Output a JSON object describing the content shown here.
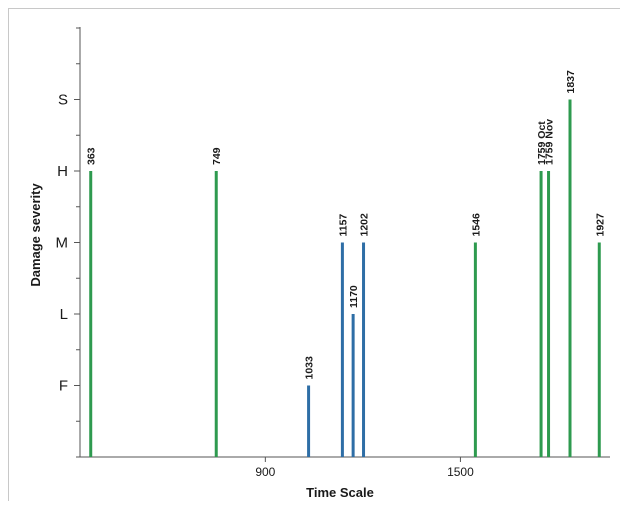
{
  "chart_data": {
    "type": "bar",
    "xlabel": "Time Scale",
    "ylabel": "Damage severity",
    "xlim": [
      330,
      1960
    ],
    "x_ticks": [
      900,
      1500
    ],
    "y_levels": [
      "F",
      "L",
      "M",
      "H",
      "S"
    ],
    "grid": false,
    "colors": {
      "green": "#2e9a4f",
      "blue": "#2e6ea6"
    },
    "bars": [
      {
        "label": "363",
        "x": 363,
        "level": "H",
        "value": 4,
        "color": "green"
      },
      {
        "label": "749",
        "x": 749,
        "level": "H",
        "value": 4,
        "color": "green"
      },
      {
        "label": "1033",
        "x": 1033,
        "level": "F",
        "value": 1,
        "color": "blue"
      },
      {
        "label": "1157",
        "x": 1137,
        "level": "M",
        "value": 3,
        "color": "blue"
      },
      {
        "label": "1170",
        "x": 1170,
        "level": "L",
        "value": 2,
        "color": "blue"
      },
      {
        "label": "1202",
        "x": 1202,
        "level": "M",
        "value": 3,
        "color": "blue"
      },
      {
        "label": "1546",
        "x": 1546,
        "level": "M",
        "value": 3,
        "color": "green"
      },
      {
        "label": "1759 Oct",
        "x": 1748,
        "level": "H",
        "value": 4,
        "color": "green"
      },
      {
        "label": "1759 Nov",
        "x": 1771,
        "level": "H",
        "value": 4,
        "color": "green"
      },
      {
        "label": "1837",
        "x": 1837,
        "level": "S",
        "value": 5,
        "color": "green"
      },
      {
        "label": "1927",
        "x": 1927,
        "level": "M",
        "value": 3,
        "color": "green"
      }
    ]
  }
}
